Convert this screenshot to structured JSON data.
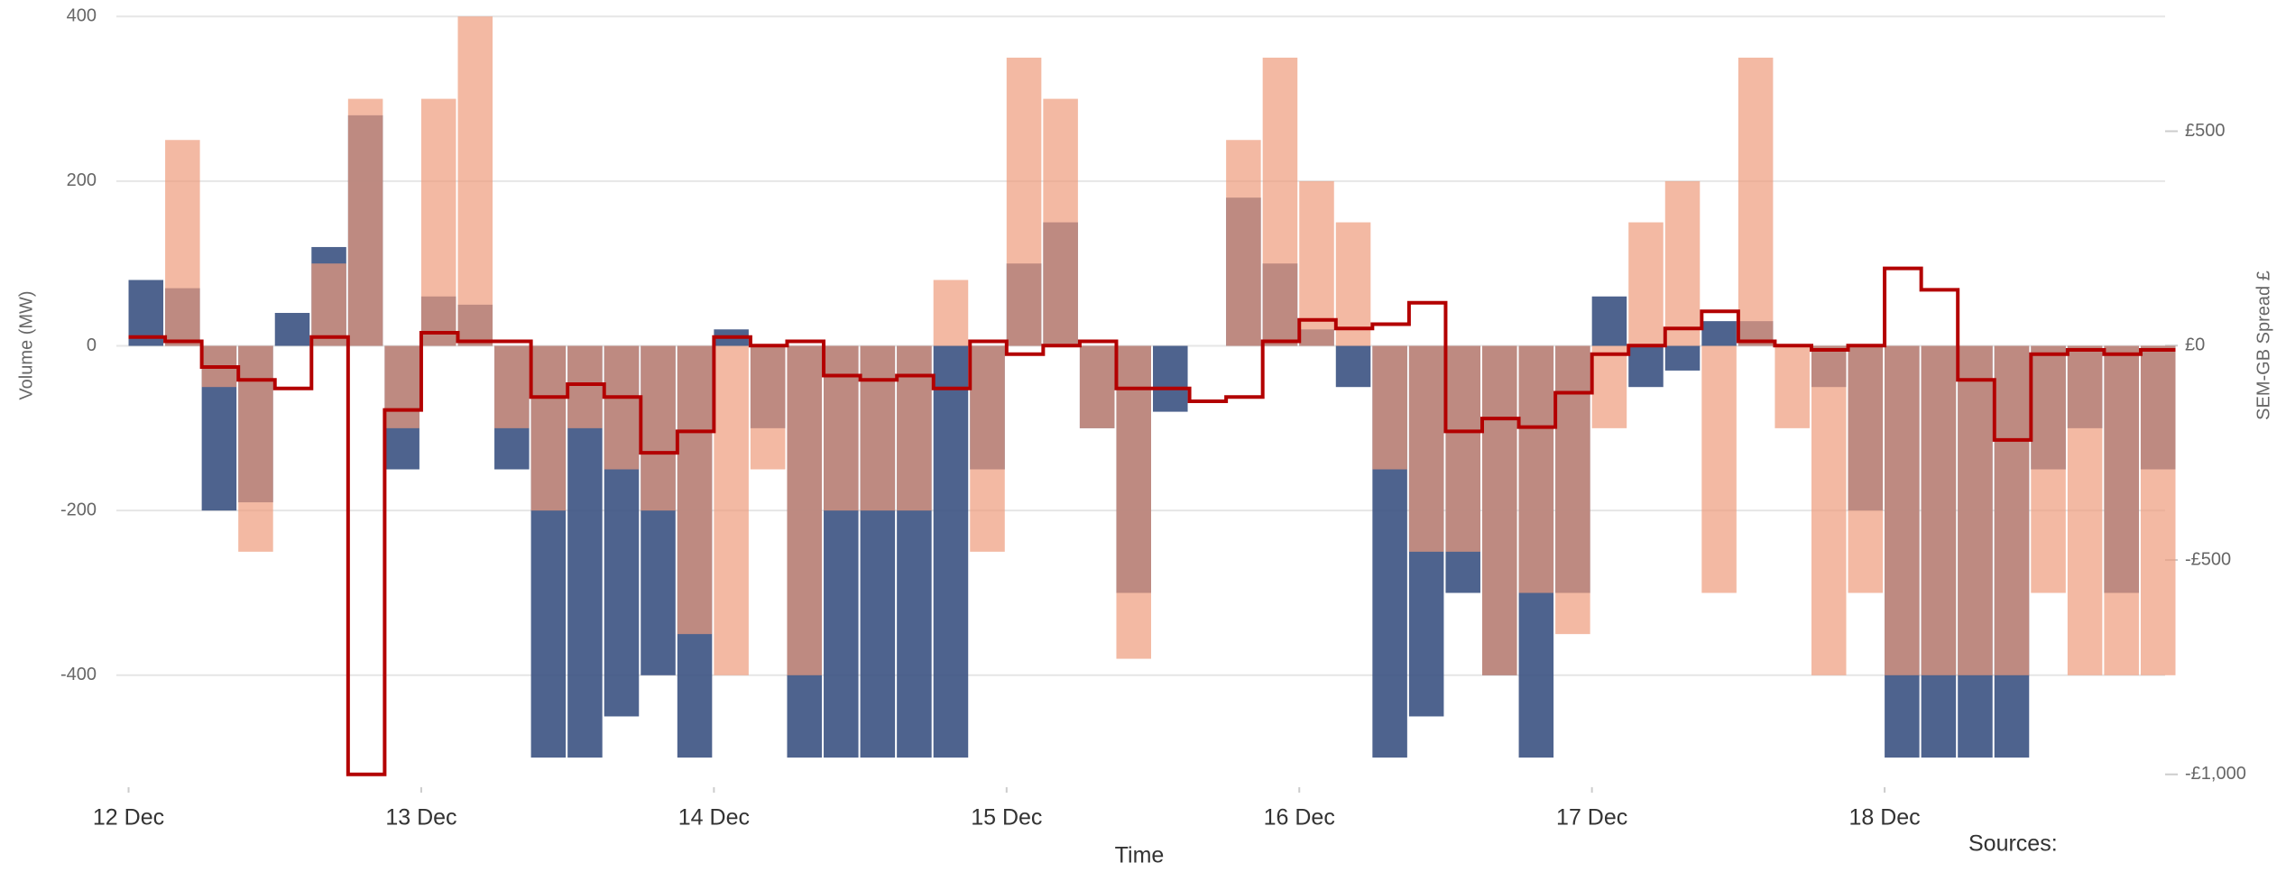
{
  "chart_data": {
    "type": "bar-line",
    "ylabel": "Volume (MW)",
    "y2label": "SEM-GB Spread £",
    "xlabel": "Time",
    "sources": "Sources:",
    "x": [
      0,
      3,
      6,
      9,
      12,
      15,
      18,
      21,
      24,
      27,
      30,
      33,
      36,
      39,
      42,
      45,
      48,
      51,
      54,
      57,
      60,
      63,
      66,
      69,
      72,
      75,
      78,
      81,
      84,
      87,
      90,
      93,
      96,
      99,
      102,
      105,
      108,
      111,
      114,
      117,
      120,
      123,
      126,
      129,
      132,
      135,
      138,
      141,
      144,
      147,
      150,
      153,
      156,
      159,
      162,
      165
    ],
    "xlim": [
      -1,
      167
    ],
    "xticks": [
      {
        "value": 0,
        "label": "12 Dec"
      },
      {
        "value": 24,
        "label": "13 Dec"
      },
      {
        "value": 48,
        "label": "14 Dec"
      },
      {
        "value": 72,
        "label": "15 Dec"
      },
      {
        "value": 96,
        "label": "16 Dec"
      },
      {
        "value": 120,
        "label": "17 Dec"
      },
      {
        "value": 144,
        "label": "18 Dec"
      }
    ],
    "ylim": [
      -536,
      420
    ],
    "yticks": [
      -400,
      -200,
      0,
      200,
      400
    ],
    "y2lim": [
      -1030,
      806
    ],
    "y2ticks": [
      {
        "value": 500,
        "label": "£500"
      },
      {
        "value": 0,
        "label": "£0"
      },
      {
        "value": -500,
        "label": "-£500"
      },
      {
        "value": -1000,
        "label": "-£1,000"
      }
    ],
    "grid": true,
    "series": [
      {
        "type": "bar",
        "color": "#3b5282",
        "values": [
          80,
          70,
          -200,
          -190,
          40,
          120,
          280,
          -150,
          60,
          50,
          -150,
          -500,
          -500,
          -450,
          -400,
          -500,
          20,
          -100,
          -500,
          -500,
          -500,
          -500,
          -500,
          -150,
          100,
          150,
          -100,
          -300,
          -80,
          0,
          180,
          100,
          20,
          -50,
          -500,
          -450,
          -300,
          -400,
          -500,
          -300,
          60,
          -50,
          -30,
          30,
          30,
          0,
          -50,
          -200,
          -500,
          -500,
          -500,
          -500,
          -150,
          -100,
          -300,
          -150
        ]
      },
      {
        "type": "bar",
        "color": "#ee9b7c",
        "values": [
          0,
          250,
          -50,
          -250,
          0,
          100,
          300,
          -100,
          300,
          400,
          -100,
          -200,
          -100,
          -150,
          -200,
          -350,
          -400,
          -150,
          -400,
          -200,
          -200,
          -200,
          80,
          -250,
          350,
          300,
          -100,
          -380,
          0,
          0,
          250,
          350,
          200,
          150,
          -150,
          -250,
          -250,
          -400,
          -300,
          -350,
          -100,
          150,
          200,
          -300,
          350,
          -100,
          -400,
          -300,
          -400,
          -400,
          -400,
          -400,
          -300,
          -400,
          -400,
          -400
        ]
      },
      {
        "type": "line",
        "axis": "y2",
        "color": "#b30000",
        "values": [
          20,
          10,
          -50,
          -80,
          -100,
          20,
          -1000,
          -150,
          30,
          10,
          10,
          -120,
          -90,
          -120,
          -250,
          -200,
          20,
          0,
          10,
          -70,
          -80,
          -70,
          -100,
          10,
          -20,
          0,
          10,
          -100,
          -100,
          -130,
          -120,
          10,
          60,
          40,
          50,
          100,
          -200,
          -170,
          -190,
          -110,
          -20,
          0,
          40,
          80,
          10,
          0,
          -10,
          0,
          180,
          130,
          -80,
          -220,
          -20,
          -10,
          -20,
          -10
        ]
      }
    ]
  }
}
